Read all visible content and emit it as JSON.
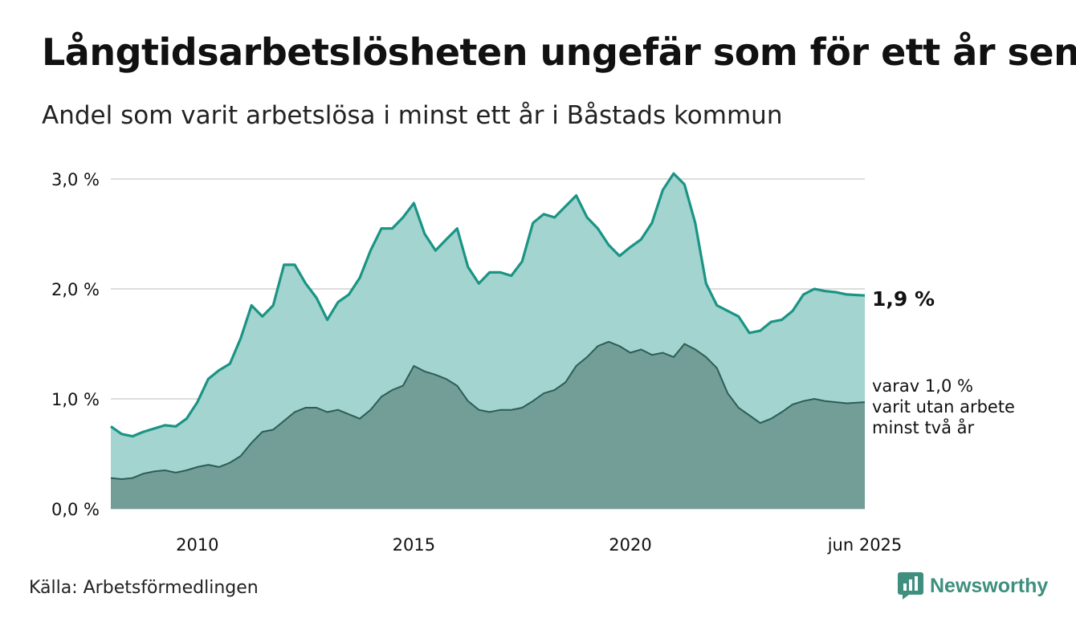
{
  "title": "Långtidsarbetslösheten ungefär som för ett år sen",
  "subtitle": "Andel som varit arbetslösa i minst ett år i Båstads kommun",
  "source": "Källa: Arbetsförmedlingen",
  "brand": "Newsworthy",
  "annotations": {
    "main_value": "1,9 %",
    "sub_line1": "varav 1,0 %",
    "sub_line2": "varit utan arbete",
    "sub_line3": "minst två år"
  },
  "colors": {
    "main_line": "#1a9484",
    "main_fill": "#a3d4cf",
    "sub_line": "#2b5e56",
    "sub_fill": "#729e97",
    "grid": "#dddddd",
    "brand": "#3e8f7e"
  },
  "chart_data": {
    "type": "area",
    "x_start": "2008-01",
    "x_end": "2025-06",
    "x_ticks": [
      {
        "x": 2010,
        "label": "2010"
      },
      {
        "x": 2015,
        "label": "2015"
      },
      {
        "x": 2020,
        "label": "2020"
      },
      {
        "x": 2025.4167,
        "label": "jun 2025"
      }
    ],
    "y_ticks": [
      {
        "y": 0,
        "label": "0,0 %"
      },
      {
        "y": 1,
        "label": "1,0 %"
      },
      {
        "y": 2,
        "label": "2,0 %"
      },
      {
        "y": 3,
        "label": "3,0 %"
      }
    ],
    "ylim": [
      0,
      3.1
    ],
    "grid": true,
    "series": [
      {
        "name": "",
        "points": [
          [
            2008.0,
            0.75
          ],
          [
            2008.25,
            0.68
          ],
          [
            2008.5,
            0.66
          ],
          [
            2008.75,
            0.7
          ],
          [
            2009.0,
            0.73
          ],
          [
            2009.25,
            0.76
          ],
          [
            2009.5,
            0.75
          ],
          [
            2009.75,
            0.82
          ],
          [
            2010.0,
            0.97
          ],
          [
            2010.25,
            1.18
          ],
          [
            2010.5,
            1.26
          ],
          [
            2010.75,
            1.32
          ],
          [
            2011.0,
            1.55
          ],
          [
            2011.25,
            1.85
          ],
          [
            2011.5,
            1.75
          ],
          [
            2011.75,
            1.85
          ],
          [
            2012.0,
            2.22
          ],
          [
            2012.25,
            2.22
          ],
          [
            2012.5,
            2.05
          ],
          [
            2012.75,
            1.92
          ],
          [
            2013.0,
            1.72
          ],
          [
            2013.25,
            1.88
          ],
          [
            2013.5,
            1.95
          ],
          [
            2013.75,
            2.1
          ],
          [
            2014.0,
            2.35
          ],
          [
            2014.25,
            2.55
          ],
          [
            2014.5,
            2.55
          ],
          [
            2014.75,
            2.65
          ],
          [
            2015.0,
            2.78
          ],
          [
            2015.25,
            2.5
          ],
          [
            2015.5,
            2.35
          ],
          [
            2015.75,
            2.45
          ],
          [
            2016.0,
            2.55
          ],
          [
            2016.25,
            2.2
          ],
          [
            2016.5,
            2.05
          ],
          [
            2016.75,
            2.15
          ],
          [
            2017.0,
            2.15
          ],
          [
            2017.25,
            2.12
          ],
          [
            2017.5,
            2.25
          ],
          [
            2017.75,
            2.6
          ],
          [
            2018.0,
            2.68
          ],
          [
            2018.25,
            2.65
          ],
          [
            2018.5,
            2.75
          ],
          [
            2018.75,
            2.85
          ],
          [
            2019.0,
            2.65
          ],
          [
            2019.25,
            2.55
          ],
          [
            2019.5,
            2.4
          ],
          [
            2019.75,
            2.3
          ],
          [
            2020.0,
            2.38
          ],
          [
            2020.25,
            2.45
          ],
          [
            2020.5,
            2.6
          ],
          [
            2020.75,
            2.9
          ],
          [
            2021.0,
            3.05
          ],
          [
            2021.25,
            2.95
          ],
          [
            2021.5,
            2.6
          ],
          [
            2021.75,
            2.05
          ],
          [
            2022.0,
            1.85
          ],
          [
            2022.25,
            1.8
          ],
          [
            2022.5,
            1.75
          ],
          [
            2022.75,
            1.6
          ],
          [
            2023.0,
            1.62
          ],
          [
            2023.25,
            1.7
          ],
          [
            2023.5,
            1.72
          ],
          [
            2023.75,
            1.8
          ],
          [
            2024.0,
            1.95
          ],
          [
            2024.25,
            2.0
          ],
          [
            2024.5,
            1.98
          ],
          [
            2024.75,
            1.97
          ],
          [
            2025.0,
            1.95
          ],
          [
            2025.4167,
            1.94
          ]
        ]
      },
      {
        "name": "",
        "points": [
          [
            2008.0,
            0.28
          ],
          [
            2008.25,
            0.27
          ],
          [
            2008.5,
            0.28
          ],
          [
            2008.75,
            0.32
          ],
          [
            2009.0,
            0.34
          ],
          [
            2009.25,
            0.35
          ],
          [
            2009.5,
            0.33
          ],
          [
            2009.75,
            0.35
          ],
          [
            2010.0,
            0.38
          ],
          [
            2010.25,
            0.4
          ],
          [
            2010.5,
            0.38
          ],
          [
            2010.75,
            0.42
          ],
          [
            2011.0,
            0.48
          ],
          [
            2011.25,
            0.6
          ],
          [
            2011.5,
            0.7
          ],
          [
            2011.75,
            0.72
          ],
          [
            2012.0,
            0.8
          ],
          [
            2012.25,
            0.88
          ],
          [
            2012.5,
            0.92
          ],
          [
            2012.75,
            0.92
          ],
          [
            2013.0,
            0.88
          ],
          [
            2013.25,
            0.9
          ],
          [
            2013.5,
            0.86
          ],
          [
            2013.75,
            0.82
          ],
          [
            2014.0,
            0.9
          ],
          [
            2014.25,
            1.02
          ],
          [
            2014.5,
            1.08
          ],
          [
            2014.75,
            1.12
          ],
          [
            2015.0,
            1.3
          ],
          [
            2015.25,
            1.25
          ],
          [
            2015.5,
            1.22
          ],
          [
            2015.75,
            1.18
          ],
          [
            2016.0,
            1.12
          ],
          [
            2016.25,
            0.98
          ],
          [
            2016.5,
            0.9
          ],
          [
            2016.75,
            0.88
          ],
          [
            2017.0,
            0.9
          ],
          [
            2017.25,
            0.9
          ],
          [
            2017.5,
            0.92
          ],
          [
            2017.75,
            0.98
          ],
          [
            2018.0,
            1.05
          ],
          [
            2018.25,
            1.08
          ],
          [
            2018.5,
            1.15
          ],
          [
            2018.75,
            1.3
          ],
          [
            2019.0,
            1.38
          ],
          [
            2019.25,
            1.48
          ],
          [
            2019.5,
            1.52
          ],
          [
            2019.75,
            1.48
          ],
          [
            2020.0,
            1.42
          ],
          [
            2020.25,
            1.45
          ],
          [
            2020.5,
            1.4
          ],
          [
            2020.75,
            1.42
          ],
          [
            2021.0,
            1.38
          ],
          [
            2021.25,
            1.5
          ],
          [
            2021.5,
            1.45
          ],
          [
            2021.75,
            1.38
          ],
          [
            2022.0,
            1.28
          ],
          [
            2022.25,
            1.05
          ],
          [
            2022.5,
            0.92
          ],
          [
            2022.75,
            0.85
          ],
          [
            2023.0,
            0.78
          ],
          [
            2023.25,
            0.82
          ],
          [
            2023.5,
            0.88
          ],
          [
            2023.75,
            0.95
          ],
          [
            2024.0,
            0.98
          ],
          [
            2024.25,
            1.0
          ],
          [
            2024.5,
            0.98
          ],
          [
            2024.75,
            0.97
          ],
          [
            2025.0,
            0.96
          ],
          [
            2025.4167,
            0.97
          ]
        ]
      }
    ]
  }
}
